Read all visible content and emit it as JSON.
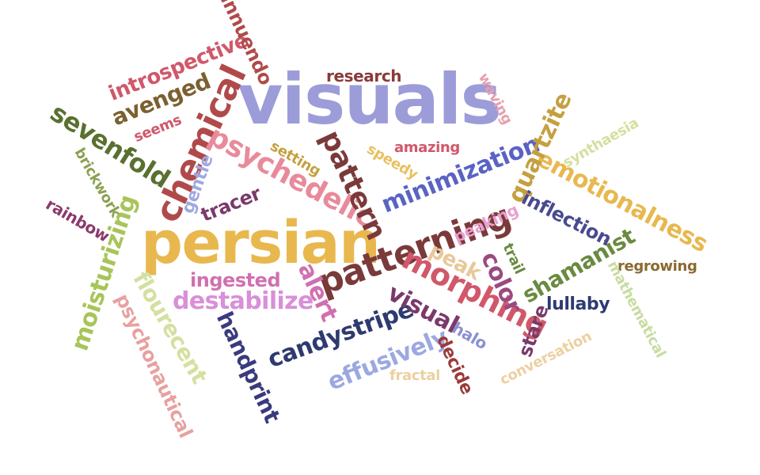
{
  "words": [
    {
      "text": "visuals",
      "color": "#9c9cd9"
    },
    {
      "text": "persian",
      "color": "#e8b84f"
    },
    {
      "text": "patterning",
      "color": "#7b3a3a"
    },
    {
      "text": "chemical",
      "color": "#b04a4a"
    },
    {
      "text": "psychedelic",
      "color": "#e88a9a"
    },
    {
      "text": "pattern",
      "color": "#7b3a3a"
    },
    {
      "text": "morphing",
      "color": "#d0586a"
    },
    {
      "text": "minimization",
      "color": "#5a63c4"
    },
    {
      "text": "emotionalness",
      "color": "#e8b84f"
    },
    {
      "text": "destabilize",
      "color": "#d98fd9"
    },
    {
      "text": "moisturizing",
      "color": "#a8c45a"
    },
    {
      "text": "candystripe",
      "color": "#2e3a70"
    },
    {
      "text": "visual",
      "color": "#7b3a6a"
    },
    {
      "text": "sevenfold",
      "color": "#5a7030"
    },
    {
      "text": "avenged",
      "color": "#7b6030"
    },
    {
      "text": "introspective",
      "color": "#d0586a"
    },
    {
      "text": "innuendo",
      "color": "#b04a4a"
    },
    {
      "text": "quartzite",
      "color": "#c4a040"
    },
    {
      "text": "shamanist",
      "color": "#6a8a40"
    },
    {
      "text": "effusively",
      "color": "#9ca8e0"
    },
    {
      "text": "handprint",
      "color": "#3a3a80"
    },
    {
      "text": "psychonautical",
      "color": "#e8a0a0"
    },
    {
      "text": "flourecent",
      "color": "#d4e0a0"
    },
    {
      "text": "alert",
      "color": "#d070b0"
    },
    {
      "text": "ingested",
      "color": "#d070b0"
    },
    {
      "text": "inflection",
      "color": "#4a4a90"
    },
    {
      "text": "color",
      "color": "#9a4a80"
    },
    {
      "text": "peak",
      "color": "#e8c89a"
    },
    {
      "text": "stare",
      "color": "#7a3a6a"
    },
    {
      "text": "decide",
      "color": "#9a3a3a"
    },
    {
      "text": "tracer",
      "color": "#7a3a6a"
    },
    {
      "text": "gentle",
      "color": "#a0a8e0"
    },
    {
      "text": "brickwork",
      "color": "#8aa050"
    },
    {
      "text": "rainbow",
      "color": "#8a3a6a"
    },
    {
      "text": "research",
      "color": "#8a3a3a"
    },
    {
      "text": "waving",
      "color": "#e8a0b0"
    },
    {
      "text": "seems",
      "color": "#d0586a"
    },
    {
      "text": "setting",
      "color": "#c4a040"
    },
    {
      "text": "speedy",
      "color": "#e8c060"
    },
    {
      "text": "amazing",
      "color": "#d0586a"
    },
    {
      "text": "synthaesia",
      "color": "#d4e0a0"
    },
    {
      "text": "peaking",
      "color": "#e8a0d0"
    },
    {
      "text": "trail",
      "color": "#6a8a40"
    },
    {
      "text": "regrowing",
      "color": "#8a6a30"
    },
    {
      "text": "mathematical",
      "color": "#c8dca0"
    },
    {
      "text": "lullaby",
      "color": "#2e3a70"
    },
    {
      "text": "halo",
      "color": "#8a90d0"
    },
    {
      "text": "conversation",
      "color": "#ecd0a0"
    },
    {
      "text": "fractal",
      "color": "#ecd0a0"
    }
  ]
}
